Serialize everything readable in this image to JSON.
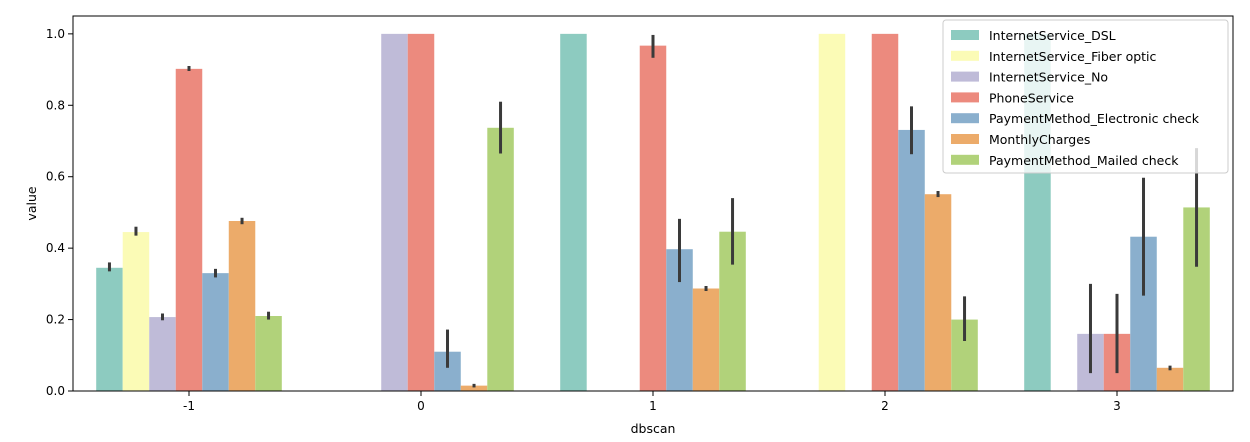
{
  "chart_data": {
    "type": "bar",
    "xlabel": "dbscan",
    "ylabel": "value",
    "ylim": [
      0,
      1.05
    ],
    "yticks": [
      "0.0",
      "0.2",
      "0.4",
      "0.6",
      "0.8",
      "1.0"
    ],
    "categories": [
      "-1",
      "0",
      "1",
      "2",
      "3"
    ],
    "grid": false,
    "legend_position": "top-right",
    "series": [
      {
        "name": "InternetService_DSL",
        "color": "#8dcbc0",
        "values": [
          0.345,
          0.0,
          1.0,
          0.0,
          1.0
        ],
        "err_low": [
          0.335,
          0.0,
          1.0,
          0.0,
          1.0
        ],
        "err_high": [
          0.36,
          0.0,
          1.0,
          0.0,
          1.0
        ]
      },
      {
        "name": "InternetService_Fiber optic",
        "color": "#fbfbb6",
        "values": [
          0.445,
          0.0,
          0.0,
          1.0,
          0.0
        ],
        "err_low": [
          0.435,
          0.0,
          0.0,
          1.0,
          0.0
        ],
        "err_high": [
          0.46,
          0.0,
          0.0,
          1.0,
          0.0
        ]
      },
      {
        "name": "InternetService_No",
        "color": "#bfbbd8",
        "values": [
          0.207,
          1.0,
          0.0,
          0.0,
          0.16
        ],
        "err_low": [
          0.198,
          1.0,
          0.0,
          0.0,
          0.05
        ],
        "err_high": [
          0.217,
          1.0,
          0.0,
          0.0,
          0.3
        ]
      },
      {
        "name": "PhoneService",
        "color": "#ec8a7e",
        "values": [
          0.902,
          1.0,
          0.967,
          1.0,
          0.16
        ],
        "err_low": [
          0.896,
          1.0,
          0.933,
          1.0,
          0.05
        ],
        "err_high": [
          0.91,
          1.0,
          0.997,
          1.0,
          0.272
        ]
      },
      {
        "name": "PaymentMethod_Electronic check",
        "color": "#8aafcd",
        "values": [
          0.33,
          0.11,
          0.397,
          0.731,
          0.432
        ],
        "err_low": [
          0.318,
          0.065,
          0.305,
          0.663,
          0.267
        ],
        "err_high": [
          0.342,
          0.172,
          0.482,
          0.797,
          0.597
        ]
      },
      {
        "name": "MonthlyCharges",
        "color": "#ecab6a",
        "values": [
          0.476,
          0.015,
          0.287,
          0.551,
          0.065
        ],
        "err_low": [
          0.467,
          0.01,
          0.28,
          0.543,
          0.058
        ],
        "err_high": [
          0.485,
          0.02,
          0.294,
          0.56,
          0.071
        ]
      },
      {
        "name": "PaymentMethod_Mailed check",
        "color": "#b1d27a",
        "values": [
          0.21,
          0.737,
          0.446,
          0.2,
          0.514
        ],
        "err_low": [
          0.2,
          0.665,
          0.354,
          0.14,
          0.348
        ],
        "err_high": [
          0.222,
          0.81,
          0.54,
          0.265,
          0.68
        ]
      }
    ]
  }
}
